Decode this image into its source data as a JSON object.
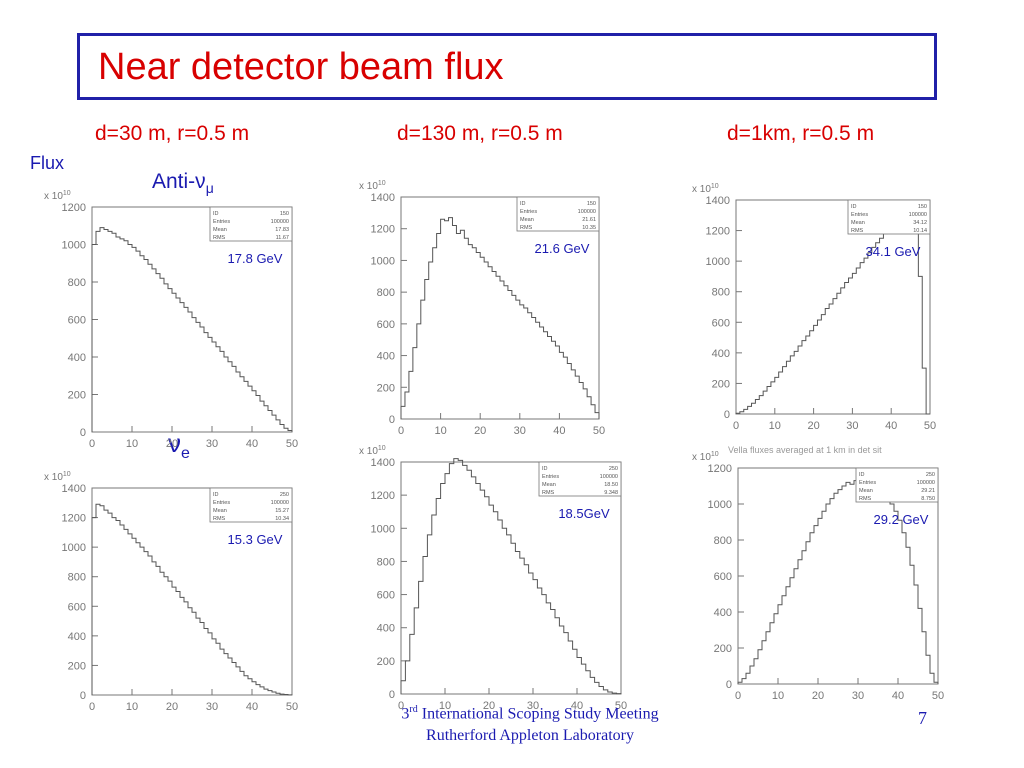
{
  "title": "Near detector beam flux",
  "columns": [
    "d=30 m, r=0.5 m",
    "d=130 m, r=0.5 m",
    "d=1km, r=0.5 m"
  ],
  "flux_label": "Flux",
  "row_labels": {
    "anti": "Anti-ν",
    "anti_sub": "μ",
    "nue": "ν",
    "nue_sub": "e"
  },
  "footer": {
    "line1_sup": "rd",
    "line1_num": "3",
    "line1_rest": " International Scoping Study Meeting",
    "line2": "Rutherford Appleton Laboratory"
  },
  "page_number": "7",
  "chart_data": [
    {
      "type": "area",
      "subtitle": "Anti-νμ, d=30 m, r=0.5 m",
      "exponent": "x 10",
      "exponent_power": "10",
      "xlim": [
        0,
        50
      ],
      "ylim": [
        0,
        1200
      ],
      "xticks": [
        0,
        10,
        20,
        30,
        40,
        50
      ],
      "yticks": [
        0,
        200,
        400,
        600,
        800,
        1000,
        1200
      ],
      "stats": [
        [
          "ID",
          "150"
        ],
        [
          "Entries",
          "100000"
        ],
        [
          "Mean",
          "17.83"
        ],
        [
          "RMS",
          "11.67"
        ]
      ],
      "annotation": "17.8 GeV",
      "x": [
        0,
        1,
        2,
        3,
        4,
        5,
        6,
        7,
        8,
        9,
        10,
        11,
        12,
        13,
        14,
        15,
        16,
        17,
        18,
        19,
        20,
        21,
        22,
        23,
        24,
        25,
        26,
        27,
        28,
        29,
        30,
        31,
        32,
        33,
        34,
        35,
        36,
        37,
        38,
        39,
        40,
        41,
        42,
        43,
        44,
        45,
        46,
        47,
        48,
        49
      ],
      "values": [
        1000,
        1070,
        1090,
        1080,
        1070,
        1060,
        1040,
        1030,
        1020,
        1000,
        985,
        965,
        940,
        920,
        895,
        870,
        845,
        820,
        790,
        765,
        740,
        715,
        690,
        665,
        640,
        610,
        585,
        560,
        530,
        505,
        480,
        455,
        430,
        400,
        375,
        350,
        320,
        295,
        270,
        245,
        220,
        195,
        165,
        140,
        115,
        90,
        65,
        40,
        20,
        8
      ]
    },
    {
      "type": "area",
      "subtitle": "Anti-νμ, d=130 m, r=0.5 m",
      "exponent": "x 10",
      "exponent_power": "10",
      "xlim": [
        0,
        50
      ],
      "ylim": [
        0,
        1400
      ],
      "xticks": [
        0,
        10,
        20,
        30,
        40,
        50
      ],
      "yticks": [
        0,
        200,
        400,
        600,
        800,
        1000,
        1200,
        1400
      ],
      "stats": [
        [
          "ID",
          "150"
        ],
        [
          "Entries",
          "100000"
        ],
        [
          "Mean",
          "21.61"
        ],
        [
          "RMS",
          "10.35"
        ]
      ],
      "annotation": "21.6 GeV",
      "x": [
        0,
        1,
        2,
        3,
        4,
        5,
        6,
        7,
        8,
        9,
        10,
        11,
        12,
        13,
        14,
        15,
        16,
        17,
        18,
        19,
        20,
        21,
        22,
        23,
        24,
        25,
        26,
        27,
        28,
        29,
        30,
        31,
        32,
        33,
        34,
        35,
        36,
        37,
        38,
        39,
        40,
        41,
        42,
        43,
        44,
        45,
        46,
        47,
        48,
        49
      ],
      "values": [
        80,
        170,
        300,
        450,
        600,
        750,
        880,
        990,
        1080,
        1170,
        1260,
        1250,
        1270,
        1220,
        1170,
        1190,
        1140,
        1100,
        1080,
        1050,
        1020,
        990,
        960,
        930,
        900,
        870,
        840,
        810,
        780,
        750,
        720,
        700,
        670,
        640,
        610,
        580,
        550,
        520,
        490,
        460,
        420,
        390,
        350,
        310,
        270,
        230,
        190,
        140,
        90,
        40
      ]
    },
    {
      "type": "area",
      "subtitle": "Anti-νμ, d=1km, r=0.5 m",
      "exponent": "x 10",
      "exponent_power": "10",
      "xlim": [
        0,
        50
      ],
      "ylim": [
        0,
        1400
      ],
      "xticks": [
        0,
        10,
        20,
        30,
        40,
        50
      ],
      "yticks": [
        0,
        200,
        400,
        600,
        800,
        1000,
        1200,
        1400
      ],
      "stats": [
        [
          "ID",
          "150"
        ],
        [
          "Entries",
          "100000"
        ],
        [
          "Mean",
          "34.12"
        ],
        [
          "RMS",
          "10.14"
        ]
      ],
      "annotation": "34.1 GeV",
      "x": [
        0,
        1,
        2,
        3,
        4,
        5,
        6,
        7,
        8,
        9,
        10,
        11,
        12,
        13,
        14,
        15,
        16,
        17,
        18,
        19,
        20,
        21,
        22,
        23,
        24,
        25,
        26,
        27,
        28,
        29,
        30,
        31,
        32,
        33,
        34,
        35,
        36,
        37,
        38,
        39,
        40,
        41,
        42,
        43,
        44,
        45,
        46,
        47,
        48,
        49
      ],
      "values": [
        5,
        15,
        30,
        50,
        70,
        95,
        120,
        150,
        180,
        210,
        240,
        275,
        310,
        345,
        380,
        410,
        445,
        480,
        510,
        545,
        580,
        615,
        650,
        690,
        720,
        755,
        790,
        825,
        860,
        890,
        920,
        955,
        990,
        1020,
        1055,
        1090,
        1120,
        1150,
        1180,
        1210,
        1230,
        1250,
        1270,
        1280,
        1300,
        1310,
        1290,
        900,
        300,
        0
      ]
    },
    {
      "type": "area",
      "subtitle": "νe, d=30 m, r=0.5 m",
      "exponent": "x 10",
      "exponent_power": "10",
      "xlim": [
        0,
        50
      ],
      "ylim": [
        0,
        1400
      ],
      "xticks": [
        0,
        10,
        20,
        30,
        40,
        50
      ],
      "yticks": [
        0,
        200,
        400,
        600,
        800,
        1000,
        1200,
        1400
      ],
      "stats": [
        [
          "ID",
          "250"
        ],
        [
          "Entries",
          "100000"
        ],
        [
          "Mean",
          "15.27"
        ],
        [
          "RMS",
          "10.34"
        ]
      ],
      "annotation": "15.3 GeV",
      "x": [
        0,
        1,
        2,
        3,
        4,
        5,
        6,
        7,
        8,
        9,
        10,
        11,
        12,
        13,
        14,
        15,
        16,
        17,
        18,
        19,
        20,
        21,
        22,
        23,
        24,
        25,
        26,
        27,
        28,
        29,
        30,
        31,
        32,
        33,
        34,
        35,
        36,
        37,
        38,
        39,
        40,
        41,
        42,
        43,
        44,
        45,
        46,
        47,
        48,
        49
      ],
      "values": [
        1200,
        1290,
        1280,
        1250,
        1230,
        1200,
        1180,
        1150,
        1120,
        1090,
        1060,
        1030,
        1000,
        970,
        940,
        900,
        870,
        830,
        800,
        770,
        730,
        700,
        660,
        630,
        590,
        560,
        520,
        490,
        450,
        420,
        380,
        350,
        310,
        280,
        250,
        220,
        190,
        160,
        130,
        110,
        90,
        70,
        55,
        40,
        30,
        20,
        12,
        6,
        3,
        1
      ]
    },
    {
      "type": "area",
      "subtitle": "νe, d=130 m, r=0.5 m",
      "exponent": "x 10",
      "exponent_power": "10",
      "xlim": [
        0,
        50
      ],
      "ylim": [
        0,
        1400
      ],
      "xticks": [
        0,
        10,
        20,
        30,
        40,
        50
      ],
      "yticks": [
        0,
        200,
        400,
        600,
        800,
        1000,
        1200,
        1400
      ],
      "stats": [
        [
          "ID",
          "250"
        ],
        [
          "Entries",
          "100000"
        ],
        [
          "Mean",
          "18.50"
        ],
        [
          "RMS",
          "9.348"
        ]
      ],
      "annotation": "18.5GeV",
      "x": [
        0,
        1,
        2,
        3,
        4,
        5,
        6,
        7,
        8,
        9,
        10,
        11,
        12,
        13,
        14,
        15,
        16,
        17,
        18,
        19,
        20,
        21,
        22,
        23,
        24,
        25,
        26,
        27,
        28,
        29,
        30,
        31,
        32,
        33,
        34,
        35,
        36,
        37,
        38,
        39,
        40,
        41,
        42,
        43,
        44,
        45,
        46,
        47,
        48,
        49
      ],
      "values": [
        80,
        200,
        360,
        520,
        680,
        830,
        960,
        1080,
        1180,
        1270,
        1330,
        1390,
        1420,
        1410,
        1380,
        1350,
        1310,
        1270,
        1230,
        1190,
        1140,
        1100,
        1050,
        1000,
        960,
        910,
        860,
        820,
        780,
        730,
        690,
        640,
        600,
        550,
        510,
        460,
        410,
        370,
        320,
        270,
        220,
        180,
        140,
        100,
        70,
        45,
        25,
        12,
        5,
        2
      ]
    },
    {
      "type": "area",
      "subtitle": "νe, d=1km, r=0.5 m",
      "exponent": "x 10",
      "exponent_power": "10",
      "xlim": [
        0,
        50
      ],
      "ylim": [
        0,
        1200
      ],
      "xticks": [
        0,
        10,
        20,
        30,
        40,
        50
      ],
      "yticks": [
        0,
        200,
        400,
        600,
        800,
        1000,
        1200
      ],
      "stats": [
        [
          "ID",
          "250"
        ],
        [
          "Entries",
          "100000"
        ],
        [
          "Mean",
          "29.21"
        ],
        [
          "RMS",
          "8.750"
        ]
      ],
      "annotation": "29.2 GeV",
      "header_note": "Vella fluxes averaged at 1 km in det sit",
      "x": [
        0,
        1,
        2,
        3,
        4,
        5,
        6,
        7,
        8,
        9,
        10,
        11,
        12,
        13,
        14,
        15,
        16,
        17,
        18,
        19,
        20,
        21,
        22,
        23,
        24,
        25,
        26,
        27,
        28,
        29,
        30,
        31,
        32,
        33,
        34,
        35,
        36,
        37,
        38,
        39,
        40,
        41,
        42,
        43,
        44,
        45,
        46,
        47,
        48,
        49
      ],
      "values": [
        10,
        30,
        60,
        100,
        140,
        190,
        240,
        290,
        340,
        390,
        440,
        490,
        540,
        590,
        640,
        690,
        740,
        790,
        840,
        880,
        920,
        960,
        1000,
        1030,
        1060,
        1080,
        1100,
        1120,
        1110,
        1130,
        1100,
        1110,
        1120,
        1100,
        1110,
        1090,
        1060,
        1040,
        1000,
        960,
        910,
        840,
        760,
        660,
        550,
        420,
        290,
        160,
        60,
        10
      ]
    }
  ]
}
